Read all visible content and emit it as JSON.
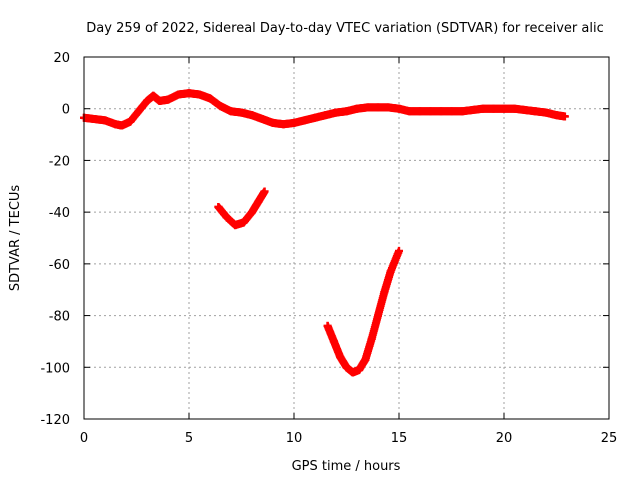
{
  "chart_data": {
    "type": "scatter",
    "title": "Day 259 of 2022, Sidereal Day-to-day VTEC variation (SDTVAR) for receiver alic",
    "xlabel": "GPS time / hours",
    "ylabel": "SDTVAR / TECUs",
    "xlim": [
      0,
      25
    ],
    "ylim": [
      -120,
      20
    ],
    "x_ticks": [
      "0",
      "5",
      "10",
      "15",
      "20",
      "25"
    ],
    "y_ticks": [
      "20",
      "0",
      "-20",
      "-40",
      "-60",
      "-80",
      "-100",
      "-120"
    ],
    "grid": true,
    "marker": "plus",
    "color": "#ff0000",
    "series": [
      {
        "values": [
          [
            0.0,
            -3.5
          ],
          [
            0.5,
            -4.0
          ],
          [
            1.0,
            -4.5
          ],
          [
            1.5,
            -6.0
          ],
          [
            1.8,
            -6.5
          ],
          [
            2.2,
            -5.0
          ],
          [
            2.6,
            -1.0
          ],
          [
            3.0,
            3.0
          ],
          [
            3.3,
            5.0
          ],
          [
            3.6,
            3.0
          ],
          [
            4.0,
            3.5
          ],
          [
            4.5,
            5.5
          ],
          [
            5.0,
            6.0
          ],
          [
            5.5,
            5.5
          ],
          [
            6.0,
            4.0
          ],
          [
            6.5,
            1.0
          ],
          [
            7.0,
            -1.0
          ],
          [
            7.5,
            -1.5
          ],
          [
            8.0,
            -2.5
          ],
          [
            8.5,
            -4.0
          ],
          [
            9.0,
            -5.5
          ],
          [
            9.5,
            -6.0
          ],
          [
            10.0,
            -5.5
          ],
          [
            10.5,
            -4.5
          ],
          [
            11.0,
            -3.5
          ],
          [
            11.5,
            -2.5
          ],
          [
            12.0,
            -1.5
          ],
          [
            12.5,
            -1.0
          ],
          [
            13.0,
            0.0
          ],
          [
            13.5,
            0.5
          ],
          [
            14.0,
            0.5
          ],
          [
            14.5,
            0.5
          ],
          [
            15.0,
            0.0
          ],
          [
            15.5,
            -1.0
          ],
          [
            16.0,
            -1.0
          ],
          [
            16.5,
            -1.0
          ],
          [
            17.0,
            -1.0
          ],
          [
            17.5,
            -1.0
          ],
          [
            18.0,
            -1.0
          ],
          [
            18.5,
            -0.5
          ],
          [
            19.0,
            0.0
          ],
          [
            19.5,
            0.0
          ],
          [
            20.0,
            0.0
          ],
          [
            20.5,
            0.0
          ],
          [
            21.0,
            -0.5
          ],
          [
            21.5,
            -1.0
          ],
          [
            22.0,
            -1.5
          ],
          [
            22.5,
            -2.5
          ],
          [
            22.9,
            -3.0
          ]
        ]
      },
      {
        "values": [
          [
            6.4,
            -38.0
          ],
          [
            6.8,
            -42.0
          ],
          [
            7.2,
            -45.0
          ],
          [
            7.6,
            -44.0
          ],
          [
            8.0,
            -40.0
          ],
          [
            8.3,
            -36.0
          ],
          [
            8.6,
            -32.0
          ]
        ]
      },
      {
        "values": [
          [
            11.6,
            -84.0
          ],
          [
            11.9,
            -90.0
          ],
          [
            12.2,
            -96.0
          ],
          [
            12.5,
            -100.0
          ],
          [
            12.8,
            -102.0
          ],
          [
            13.1,
            -101.0
          ],
          [
            13.4,
            -97.0
          ],
          [
            13.7,
            -89.0
          ],
          [
            14.0,
            -80.0
          ],
          [
            14.3,
            -71.0
          ],
          [
            14.6,
            -63.0
          ],
          [
            15.0,
            -55.0
          ]
        ]
      }
    ]
  }
}
